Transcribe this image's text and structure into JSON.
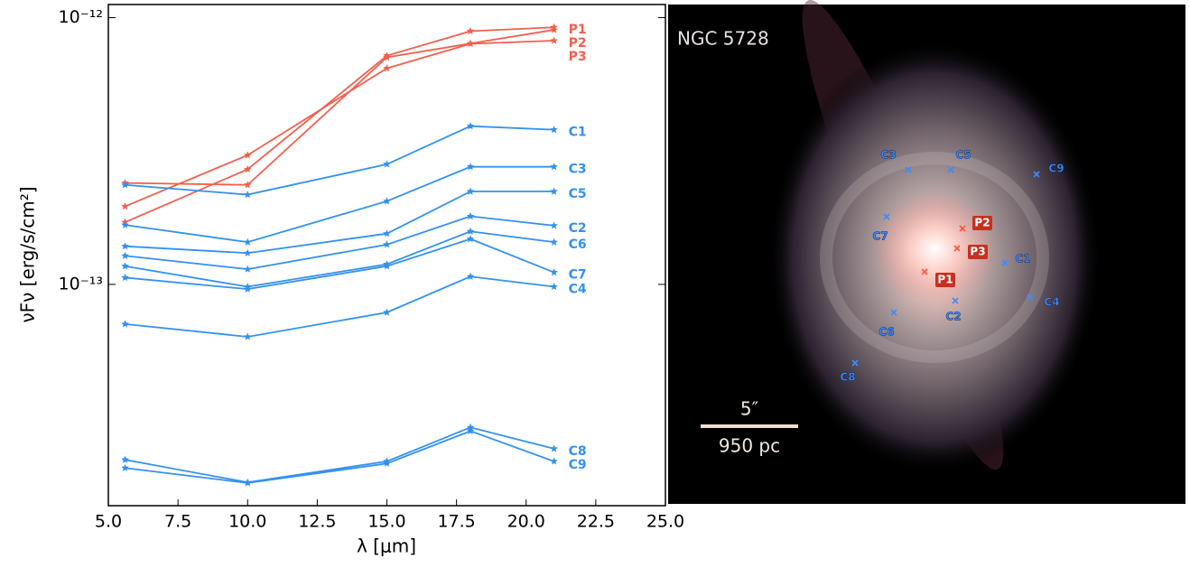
{
  "chart_data": {
    "type": "line",
    "log_y": true,
    "xlabel": "λ [μm]",
    "ylabel": "νFν [erg/s/cm²]",
    "x": [
      5.6,
      10,
      15,
      18,
      21
    ],
    "xlim": [
      5,
      25
    ],
    "xticks": [
      {
        "value": 5,
        "label": "5.0"
      },
      {
        "value": 7.5,
        "label": "7.5"
      },
      {
        "value": 10,
        "label": "10.0"
      },
      {
        "value": 12.5,
        "label": "12.5"
      },
      {
        "value": 15,
        "label": "15.0"
      },
      {
        "value": 17.5,
        "label": "17.5"
      },
      {
        "value": 20,
        "label": "20.0"
      },
      {
        "value": 22.5,
        "label": "22.5"
      },
      {
        "value": 25,
        "label": "25.0"
      }
    ],
    "ylim": [
      1.48e-14,
      1.12e-12
    ],
    "yticks": [
      {
        "value": 1e-13,
        "label": "10⁻¹³"
      },
      {
        "value": 1e-12,
        "label": "10⁻¹²"
      }
    ],
    "series": [
      {
        "name": "P1",
        "color": "#f0604d",
        "values": [
          1.71e-13,
          2.7e-13,
          7.2e-13,
          8.9e-13,
          9.2e-13
        ]
      },
      {
        "name": "P2",
        "color": "#f0604d",
        "values": [
          2.4e-13,
          2.36e-13,
          7.1e-13,
          8e-13,
          9e-13
        ]
      },
      {
        "name": "P3",
        "color": "#f0604d",
        "values": [
          1.96e-13,
          3.05e-13,
          6.46e-13,
          7.98e-13,
          8.2e-13
        ]
      },
      {
        "name": "C1",
        "color": "#3391f0",
        "values": [
          2.36e-13,
          2.17e-13,
          2.82e-13,
          3.92e-13,
          3.8e-13
        ]
      },
      {
        "name": "C3",
        "color": "#3391f0",
        "values": [
          1.67e-13,
          1.44e-13,
          2.05e-13,
          2.76e-13,
          2.76e-13
        ]
      },
      {
        "name": "C5",
        "color": "#3391f0",
        "values": [
          1.39e-13,
          1.31e-13,
          1.55e-13,
          2.23e-13,
          2.23e-13
        ]
      },
      {
        "name": "C2",
        "color": "#3391f0",
        "values": [
          1.28e-13,
          1.14e-13,
          1.41e-13,
          1.8e-13,
          1.66e-13
        ]
      },
      {
        "name": "C6",
        "color": "#3391f0",
        "values": [
          1.17e-13,
          9.8e-14,
          1.19e-13,
          1.58e-13,
          1.44e-13
        ]
      },
      {
        "name": "C7",
        "color": "#3391f0",
        "values": [
          1.06e-13,
          9.6e-14,
          1.17e-13,
          1.48e-13,
          1.11e-13
        ]
      },
      {
        "name": "C4",
        "color": "#3391f0",
        "values": [
          7.1e-14,
          6.36e-14,
          7.85e-14,
          1.07e-13,
          9.8e-14
        ]
      },
      {
        "name": "C8",
        "color": "#3391f0",
        "values": [
          2.2e-14,
          1.81e-14,
          2.17e-14,
          2.91e-14,
          2.42e-14
        ]
      },
      {
        "name": "C9",
        "color": "#3391f0",
        "values": [
          2.05e-14,
          1.8e-14,
          2.13e-14,
          2.82e-14,
          2.17e-14
        ]
      }
    ]
  },
  "image": {
    "title": "NGC 5728",
    "scale_angle": "5″",
    "scale_length": "950 pc",
    "markers": [
      "C3",
      "C5",
      "C9",
      "C7",
      "P2",
      "P3",
      "C1",
      "P1",
      "C4",
      "C2",
      "C6",
      "C8"
    ]
  }
}
